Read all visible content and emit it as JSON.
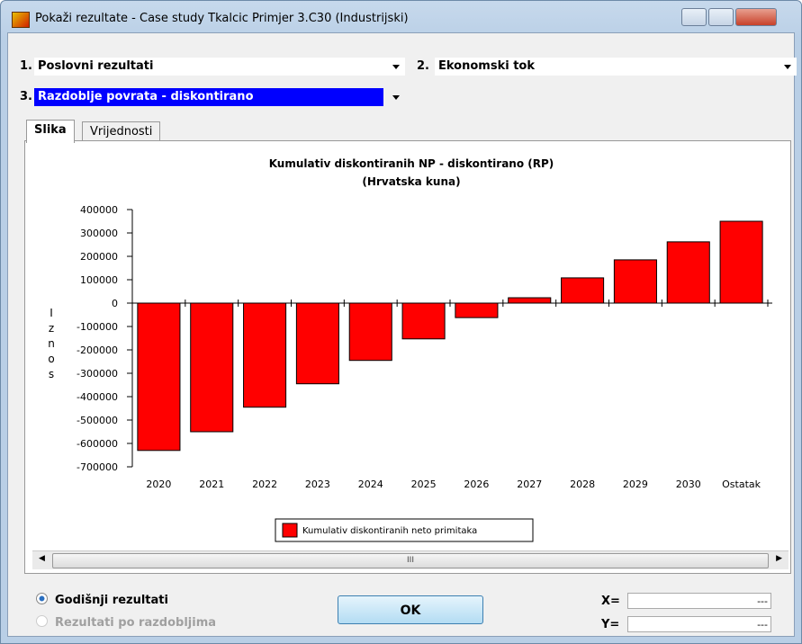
{
  "window": {
    "title": "Pokaži rezultate - Case study Tkalcic Primjer 3.C30 (Industrijski)"
  },
  "selectors": [
    {
      "number": "1.",
      "value": "Poslovni rezultati"
    },
    {
      "number": "2.",
      "value": "Ekonomski tok"
    },
    {
      "number": "3.",
      "value": "Razdoblje povrata - diskontirano"
    }
  ],
  "tabs": [
    "Slika",
    "Vrijednosti"
  ],
  "chart_data": {
    "type": "bar",
    "title": "Kumulativ diskontiranih NP - diskontirano (RP)",
    "subtitle": "(Hrvatska kuna)",
    "y_label": "Iznos",
    "categories": [
      "2020",
      "2021",
      "2022",
      "2023",
      "2024",
      "2025",
      "2026",
      "2027",
      "2028",
      "2029",
      "2030",
      "Ostatak"
    ],
    "series": [
      {
        "name": "Kumulativ diskontiranih neto primitaka",
        "color": "#ff0000",
        "values": [
          -630000,
          -550000,
          -445000,
          -345000,
          -245000,
          -153000,
          -62000,
          23000,
          108000,
          185000,
          262000,
          350000
        ]
      }
    ],
    "ylim": [
      -700000,
      400000
    ],
    "yticks": [
      -700000,
      -600000,
      -500000,
      -400000,
      -300000,
      -200000,
      -100000,
      0,
      100000,
      200000,
      300000,
      400000
    ],
    "grid": false
  },
  "scrollbar": {
    "label": "III"
  },
  "options": [
    "Godišnji rezultati",
    "Rezultati po razdobljima"
  ],
  "button": "OK",
  "coordinates": [
    {
      "label": "X=",
      "value": "---"
    },
    {
      "label": "Y=",
      "value": "---"
    }
  ]
}
